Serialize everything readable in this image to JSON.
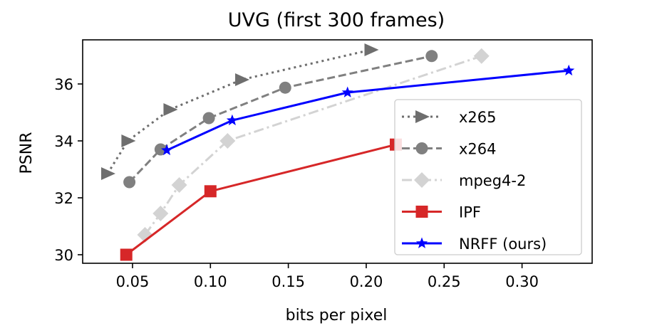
{
  "chart_data": {
    "type": "line",
    "title": "UVG (first 300 frames)",
    "xlabel": "bits per pixel",
    "ylabel": "PSNR",
    "xlim": [
      0.018,
      0.345
    ],
    "ylim": [
      29.7,
      37.55
    ],
    "xticks": [
      0.05,
      0.1,
      0.15,
      0.2,
      0.25,
      0.3
    ],
    "xtick_labels": [
      "0.05",
      "0.10",
      "0.15",
      "0.20",
      "0.25",
      "0.30"
    ],
    "yticks": [
      30,
      32,
      34,
      36
    ],
    "ytick_labels": [
      "30",
      "32",
      "34",
      "36"
    ],
    "grid": false,
    "legend_position": "lower-right",
    "series": [
      {
        "name": "x265",
        "color": "#6e6e6e",
        "dash": "dotted",
        "marker": "triangle-right",
        "x": [
          0.034,
          0.047,
          0.074,
          0.12,
          0.203
        ],
        "y": [
          32.85,
          34.0,
          35.1,
          36.15,
          37.2
        ]
      },
      {
        "name": "x264",
        "color": "#808080",
        "dash": "dashed",
        "marker": "circle",
        "x": [
          0.048,
          0.068,
          0.099,
          0.148,
          0.242
        ],
        "y": [
          32.55,
          33.7,
          34.8,
          35.87,
          36.98
        ]
      },
      {
        "name": "mpeg4-2",
        "color": "#d3d3d3",
        "dash": "dashdot",
        "marker": "diamond",
        "x": [
          0.058,
          0.068,
          0.08,
          0.111,
          0.274
        ],
        "y": [
          30.7,
          31.45,
          32.45,
          34.0,
          36.98
        ]
      },
      {
        "name": "IPF",
        "color": "#d62728",
        "dash": "solid",
        "marker": "square",
        "x": [
          0.046,
          0.1,
          0.219
        ],
        "y": [
          30.0,
          32.23,
          33.87
        ]
      },
      {
        "name": "NRFF (ours)",
        "color": "#0000ff",
        "dash": "solid",
        "marker": "star",
        "x": [
          0.072,
          0.114,
          0.188,
          0.33
        ],
        "y": [
          33.67,
          34.72,
          35.7,
          36.47
        ]
      }
    ]
  }
}
